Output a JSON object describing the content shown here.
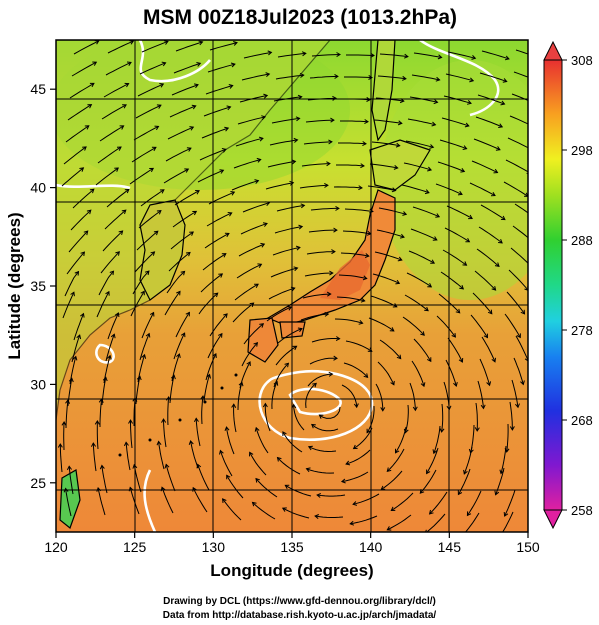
{
  "title": "MSM 00Z18Jul2023 (1013.2hPa)",
  "x_axis": {
    "label": "Longitude (degrees)",
    "min": 120,
    "max": 150,
    "ticks": [
      120,
      125,
      130,
      135,
      140,
      145,
      150
    ]
  },
  "y_axis": {
    "label": "Latitude  (degrees)",
    "min": 22.5,
    "max": 47.5,
    "ticks": [
      25,
      30,
      35,
      40,
      45
    ]
  },
  "colorbar": {
    "min": 258,
    "max": 308,
    "labels": [
      308,
      298,
      288,
      278,
      268,
      258
    ],
    "colors": [
      "#e0207a",
      "#8a18c8",
      "#2a28d8",
      "#1a78e8",
      "#20c8e0",
      "#20d890",
      "#40d030",
      "#a8e020",
      "#f0f020",
      "#f8b020",
      "#f07830",
      "#e03030"
    ]
  },
  "map_colors": {
    "land": "#f0a040",
    "sea_warm": "#ec8a3a",
    "sea_mild": "#e0b83a",
    "north_green": "#9ad830",
    "north_yellow": "#d8e030"
  },
  "credits": {
    "line1": "Drawing by DCL (https://www.gfd-dennou.org/library/dcl/)",
    "line2": "Data from http://database.rish.kyoto-u.ac.jp/arch/jmadata/"
  }
}
